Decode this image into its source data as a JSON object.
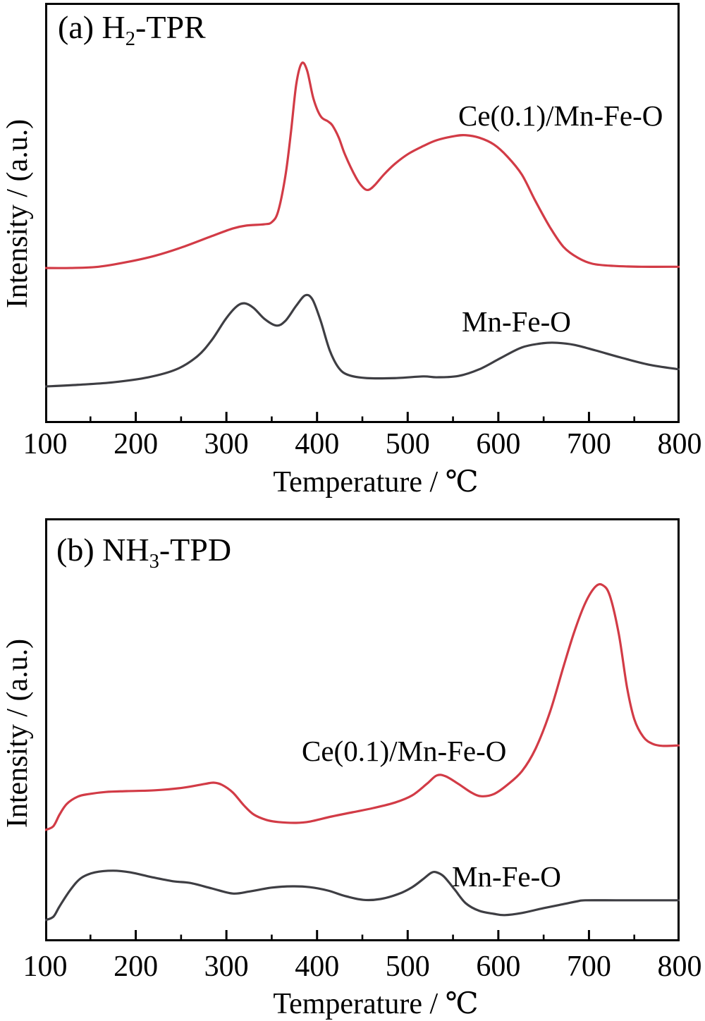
{
  "colors": {
    "background": "#ffffff",
    "axis": "#000000",
    "red_series": "#d23b46",
    "dark_series": "#3e3e43"
  },
  "chart_data": [
    {
      "type": "line",
      "panel_tag": {
        "prefix": "(a) H",
        "sub": "2",
        "suffix": "-TPR"
      },
      "xlabel": "Temperature / ℃",
      "ylabel": "Intensity / (a.u.)",
      "xlim": [
        100,
        800
      ],
      "ylim": [
        0,
        1
      ],
      "grid": false,
      "legend_position": "in-plot text annotations",
      "xticks": [
        100,
        200,
        300,
        400,
        500,
        600,
        700,
        800
      ],
      "xtick_labels": [
        "100",
        "200",
        "300",
        "400",
        "500",
        "600",
        "700",
        "800"
      ],
      "series": [
        {
          "name": "Ce(0.1)/Mn-Fe-O",
          "color": "#d23b46",
          "x": [
            100,
            128,
            159,
            190,
            221,
            252,
            284,
            307,
            322,
            342,
            350,
            357,
            365,
            371,
            377,
            383,
            389,
            396,
            404,
            412,
            417,
            424,
            431,
            443,
            451,
            457,
            464,
            474,
            486,
            501,
            517,
            532,
            552,
            564,
            579,
            595,
            610,
            626,
            641,
            657,
            672,
            688,
            704,
            727,
            758,
            799
          ],
          "y": [
            0.369,
            0.369,
            0.372,
            0.383,
            0.398,
            0.419,
            0.445,
            0.463,
            0.47,
            0.473,
            0.478,
            0.503,
            0.587,
            0.688,
            0.805,
            0.856,
            0.839,
            0.772,
            0.73,
            0.718,
            0.708,
            0.679,
            0.638,
            0.584,
            0.56,
            0.555,
            0.567,
            0.592,
            0.617,
            0.641,
            0.659,
            0.673,
            0.683,
            0.685,
            0.679,
            0.663,
            0.634,
            0.591,
            0.528,
            0.466,
            0.419,
            0.393,
            0.379,
            0.374,
            0.372,
            0.372
          ]
        },
        {
          "name": "Mn-Fe-O",
          "color": "#3e3e43",
          "x": [
            100,
            136,
            175,
            214,
            245,
            268,
            284,
            299,
            311,
            320,
            330,
            342,
            355,
            365,
            377,
            387,
            395,
            404,
            414,
            424,
            435,
            455,
            486,
            517,
            532,
            556,
            579,
            602,
            626,
            649,
            665,
            684,
            707,
            735,
            766,
            799
          ],
          "y": [
            0.087,
            0.091,
            0.097,
            0.109,
            0.128,
            0.159,
            0.198,
            0.247,
            0.277,
            0.285,
            0.274,
            0.248,
            0.232,
            0.243,
            0.279,
            0.304,
            0.294,
            0.243,
            0.173,
            0.131,
            0.114,
            0.107,
            0.107,
            0.111,
            0.109,
            0.112,
            0.128,
            0.154,
            0.18,
            0.19,
            0.191,
            0.186,
            0.173,
            0.156,
            0.139,
            0.128
          ]
        }
      ]
    },
    {
      "type": "line",
      "panel_tag": {
        "prefix": "(b) NH",
        "sub": "3",
        "suffix": "-TPD"
      },
      "xlabel": "Temperature / ℃",
      "ylabel": "Intensity / (a.u.)",
      "xlim": [
        100,
        800
      ],
      "ylim": [
        0,
        1
      ],
      "grid": false,
      "legend_position": "in-plot text annotations",
      "xticks": [
        100,
        200,
        300,
        400,
        500,
        600,
        700,
        800
      ],
      "xtick_labels": [
        "100",
        "200",
        "300",
        "400",
        "500",
        "600",
        "700",
        "800"
      ],
      "series": [
        {
          "name": "Ce(0.1)/Mn-Fe-O",
          "color": "#d23b46",
          "x": [
            100,
            109,
            116,
            124,
            136,
            148,
            167,
            190,
            221,
            252,
            276,
            286,
            295,
            307,
            319,
            330,
            344,
            357,
            377,
            392,
            416,
            439,
            462,
            486,
            505,
            521,
            532,
            542,
            556,
            570,
            581,
            595,
            610,
            626,
            641,
            657,
            672,
            684,
            696,
            707,
            715,
            723,
            733,
            742,
            750,
            760,
            770,
            781,
            799
          ],
          "y": [
            0.263,
            0.272,
            0.3,
            0.325,
            0.342,
            0.348,
            0.353,
            0.355,
            0.357,
            0.363,
            0.372,
            0.375,
            0.37,
            0.352,
            0.322,
            0.3,
            0.287,
            0.282,
            0.28,
            0.283,
            0.295,
            0.305,
            0.315,
            0.328,
            0.345,
            0.372,
            0.392,
            0.39,
            0.372,
            0.352,
            0.343,
            0.348,
            0.37,
            0.402,
            0.455,
            0.542,
            0.65,
            0.733,
            0.8,
            0.838,
            0.842,
            0.817,
            0.725,
            0.6,
            0.525,
            0.483,
            0.467,
            0.462,
            0.463
          ]
        },
        {
          "name": "Mn-Fe-O",
          "color": "#3e3e43",
          "x": [
            100,
            109,
            116,
            128,
            140,
            155,
            175,
            194,
            217,
            241,
            260,
            284,
            307,
            326,
            350,
            373,
            392,
            412,
            431,
            451,
            470,
            490,
            505,
            517,
            526,
            532,
            540,
            552,
            564,
            579,
            595,
            607,
            626,
            649,
            672,
            688,
            696,
            730,
            765,
            799
          ],
          "y": [
            0.05,
            0.058,
            0.083,
            0.122,
            0.15,
            0.163,
            0.167,
            0.163,
            0.152,
            0.142,
            0.138,
            0.125,
            0.113,
            0.118,
            0.127,
            0.13,
            0.128,
            0.12,
            0.107,
            0.098,
            0.1,
            0.112,
            0.128,
            0.147,
            0.162,
            0.163,
            0.153,
            0.122,
            0.09,
            0.072,
            0.065,
            0.062,
            0.067,
            0.078,
            0.088,
            0.095,
            0.097,
            0.097,
            0.097,
            0.097
          ]
        }
      ]
    }
  ]
}
